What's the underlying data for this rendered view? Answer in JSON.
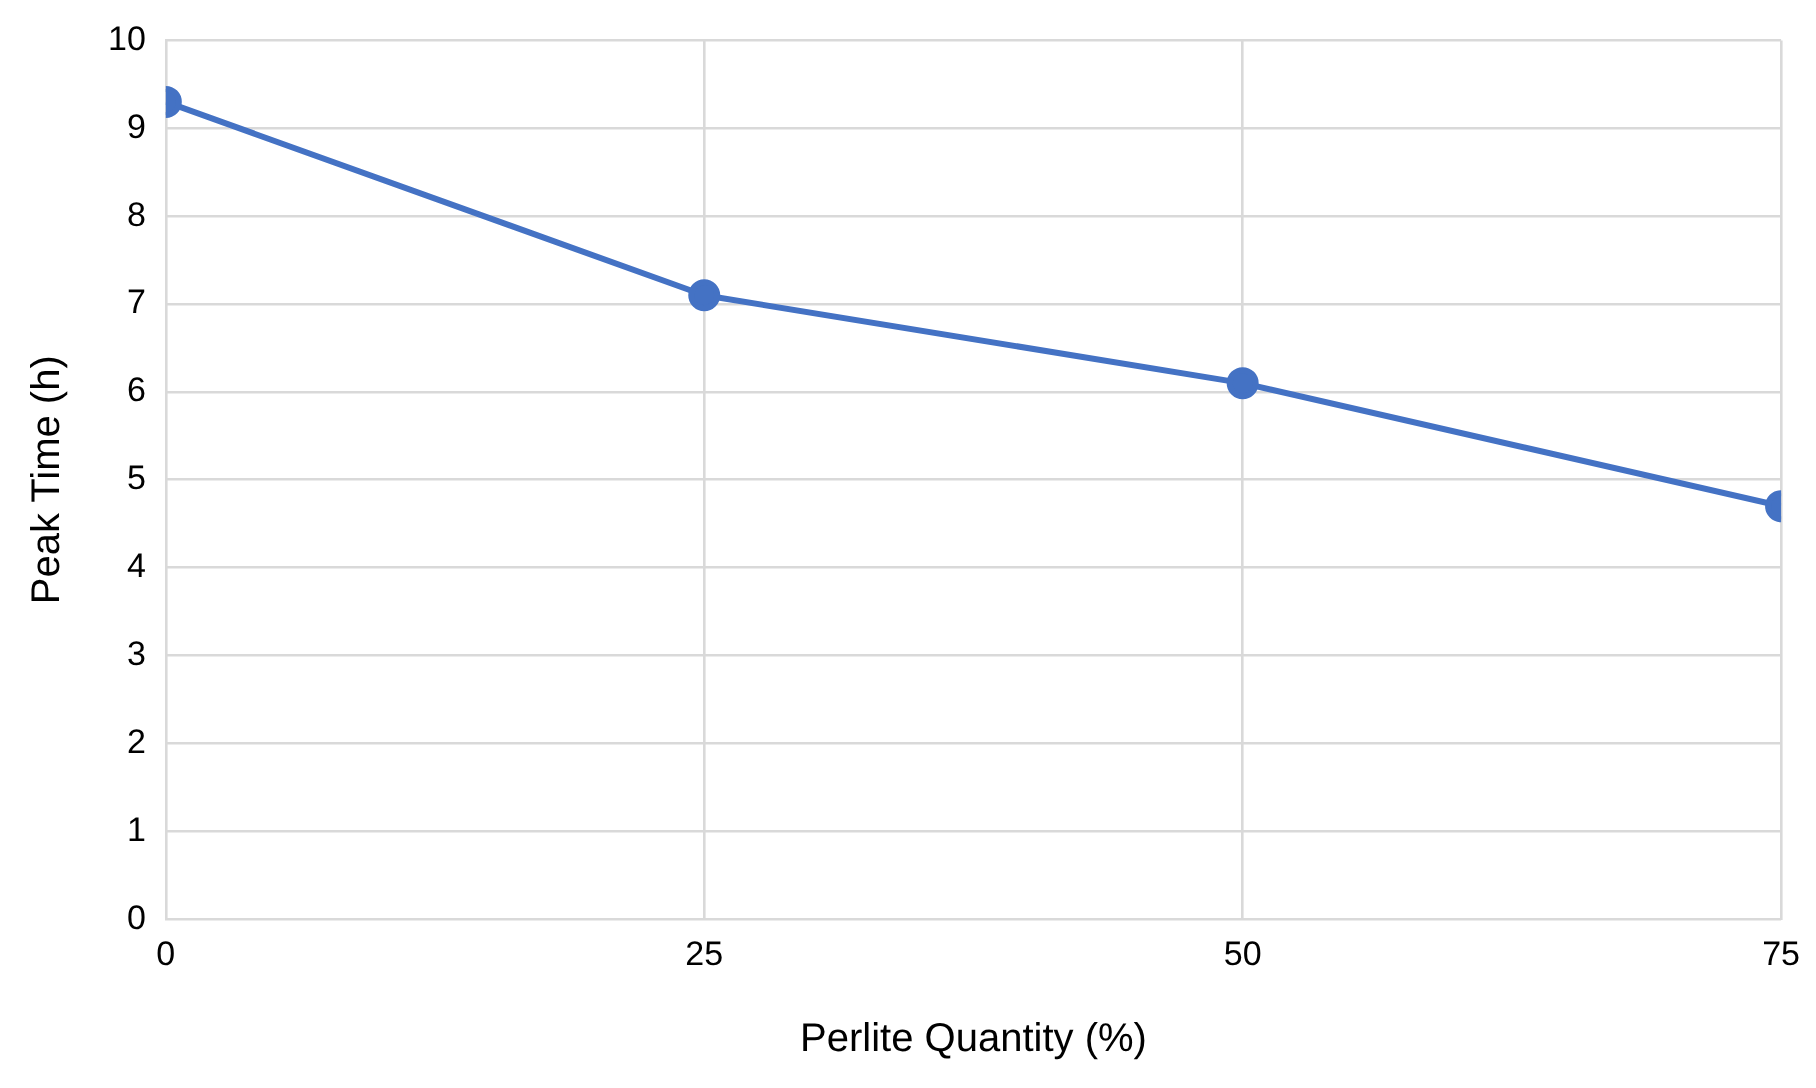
{
  "chart_data": {
    "type": "line",
    "xlabel": "Perlite Quantity (%)",
    "ylabel": "Peak Time (h)",
    "x": [
      0,
      25,
      50,
      75
    ],
    "series": [
      {
        "color": "#4472c4",
        "values": [
          9.3,
          7.1,
          6.1,
          4.7
        ]
      }
    ],
    "xlim": [
      0,
      75
    ],
    "xticks": [
      0,
      25,
      50,
      75
    ],
    "ylim": [
      0,
      10
    ],
    "yticks": [
      0,
      1,
      2,
      3,
      4,
      5,
      6,
      7,
      8,
      9,
      10
    ],
    "grid": true,
    "marker": "circle",
    "line_style": "solid"
  }
}
